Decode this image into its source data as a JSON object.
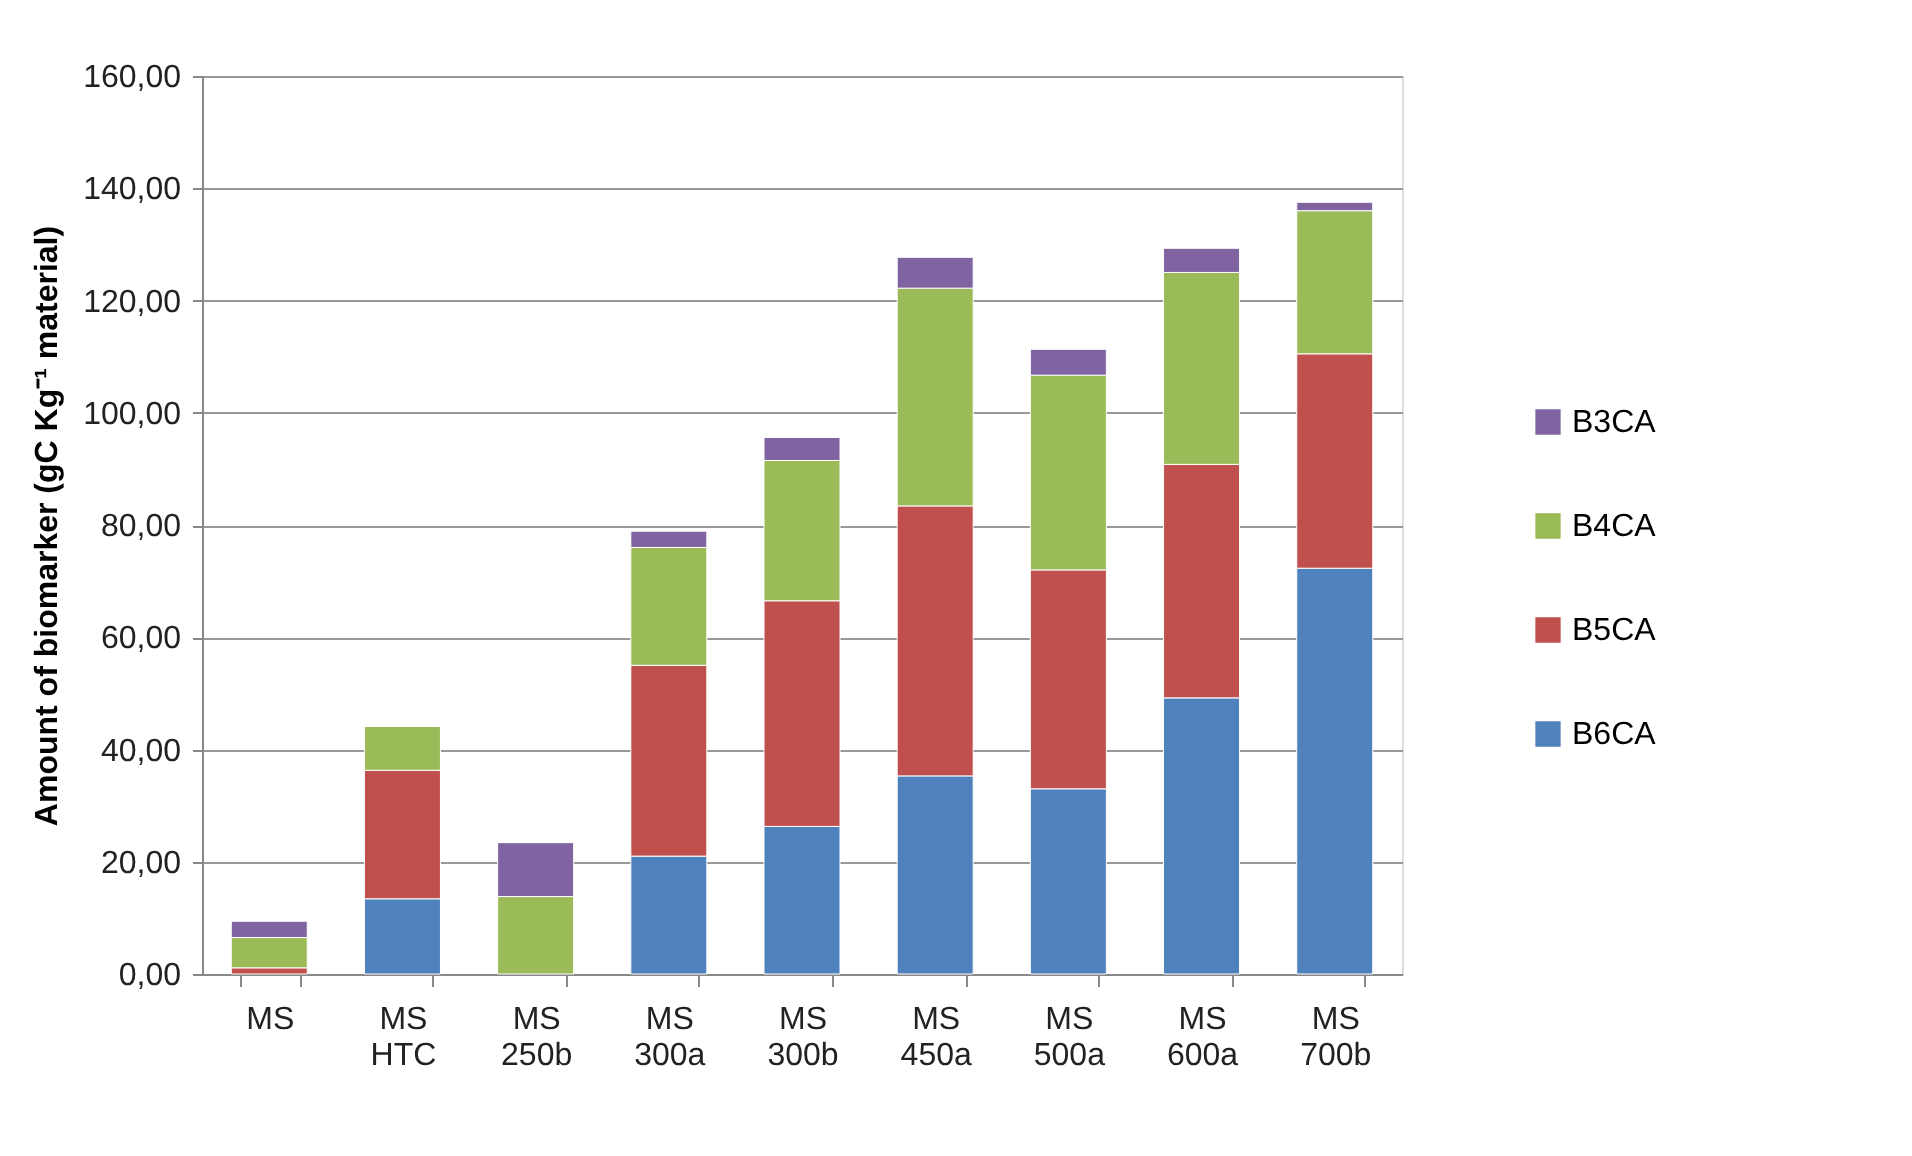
{
  "chart_data": {
    "type": "bar",
    "stacked": true,
    "ylabel": "Amount of biomarker (gC Kg⁻¹ material)",
    "categories": [
      "MS",
      "MS HTC",
      "MS 250b",
      "MS 300a",
      "MS 300b",
      "MS 450a",
      "MS 500a",
      "MS 600a",
      "MS 700b"
    ],
    "series": [
      {
        "name": "B6CA",
        "color": "#4f81bd",
        "values": [
          null,
          13.4,
          null,
          21.0,
          26.3,
          35.3,
          33.0,
          49.2,
          72.3
        ]
      },
      {
        "name": "B5CA",
        "color": "#c0504d",
        "values": [
          1.1,
          22.9,
          null,
          34.0,
          40.2,
          48.1,
          39.0,
          41.6,
          38.2
        ]
      },
      {
        "name": "B4CA",
        "color": "#9bbb59",
        "values": [
          5.4,
          7.8,
          13.8,
          21.0,
          25.0,
          38.8,
          34.7,
          34.2,
          25.5
        ]
      },
      {
        "name": "B3CA",
        "color": "#8064a2",
        "values": [
          2.9,
          null,
          9.6,
          2.9,
          4.1,
          5.5,
          4.6,
          4.3,
          1.5
        ]
      }
    ],
    "ylim": [
      0,
      160
    ],
    "yticks": [
      {
        "value": 0,
        "label": "0,00"
      },
      {
        "value": 20,
        "label": "20,00"
      },
      {
        "value": 40,
        "label": "40,00"
      },
      {
        "value": 60,
        "label": "60,00"
      },
      {
        "value": 80,
        "label": "80,00"
      },
      {
        "value": 100,
        "label": "100,00"
      },
      {
        "value": 120,
        "label": "120,00"
      },
      {
        "value": 140,
        "label": "140,00"
      },
      {
        "value": 160,
        "label": "160,00"
      }
    ],
    "grid": "y",
    "legend": "right"
  }
}
